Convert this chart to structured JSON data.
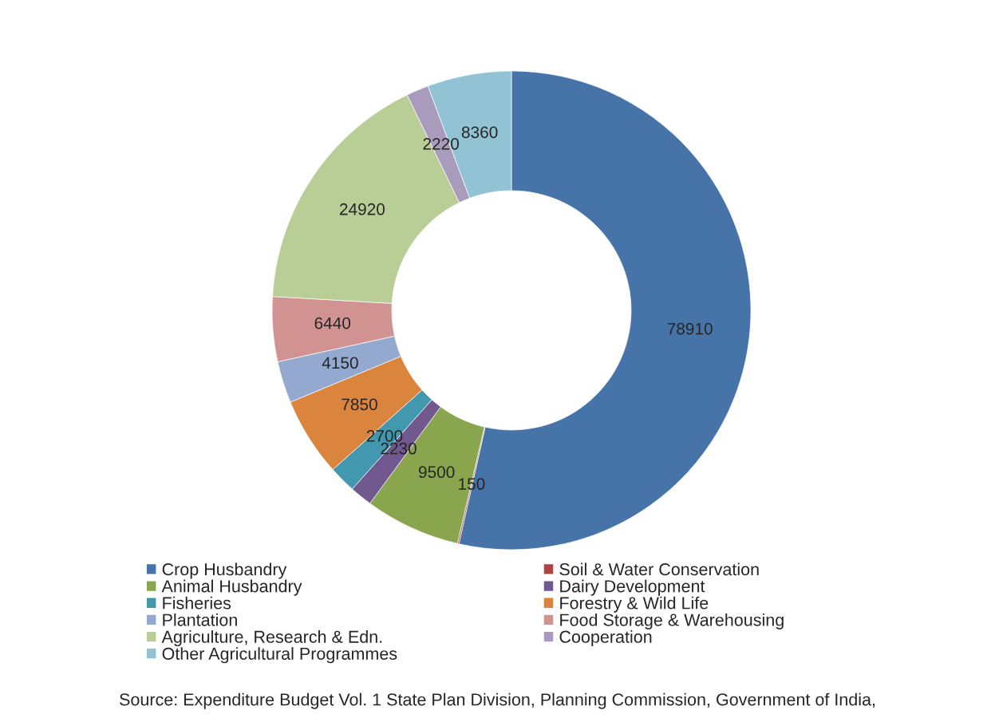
{
  "chart_data": {
    "type": "donut",
    "categories": [
      "Crop Husbandry",
      "Soil & Water Conservation",
      "Animal Husbandry",
      "Dairy Development",
      "Fisheries",
      "Forestry & Wild Life",
      "Plantation",
      "Food Storage & Warehousing",
      "Agriculture, Research & Edn.",
      "Cooperation",
      "Other Agricultural Programmes"
    ],
    "values": [
      78910,
      150,
      9500,
      2230,
      2700,
      7850,
      4150,
      6440,
      24920,
      2220,
      8360
    ],
    "colors": [
      "#4673a8",
      "#ab4542",
      "#89a54e",
      "#71588f",
      "#4198af",
      "#db843d",
      "#93a9cf",
      "#d19392",
      "#b9cd96",
      "#a99bbd",
      "#92c3d4"
    ],
    "data_labels": true,
    "legend": "bottom",
    "annotations": [
      "Source: Expenditure Budget Vol. 1 State Plan Division, Planning Commission, Government of India,"
    ]
  }
}
